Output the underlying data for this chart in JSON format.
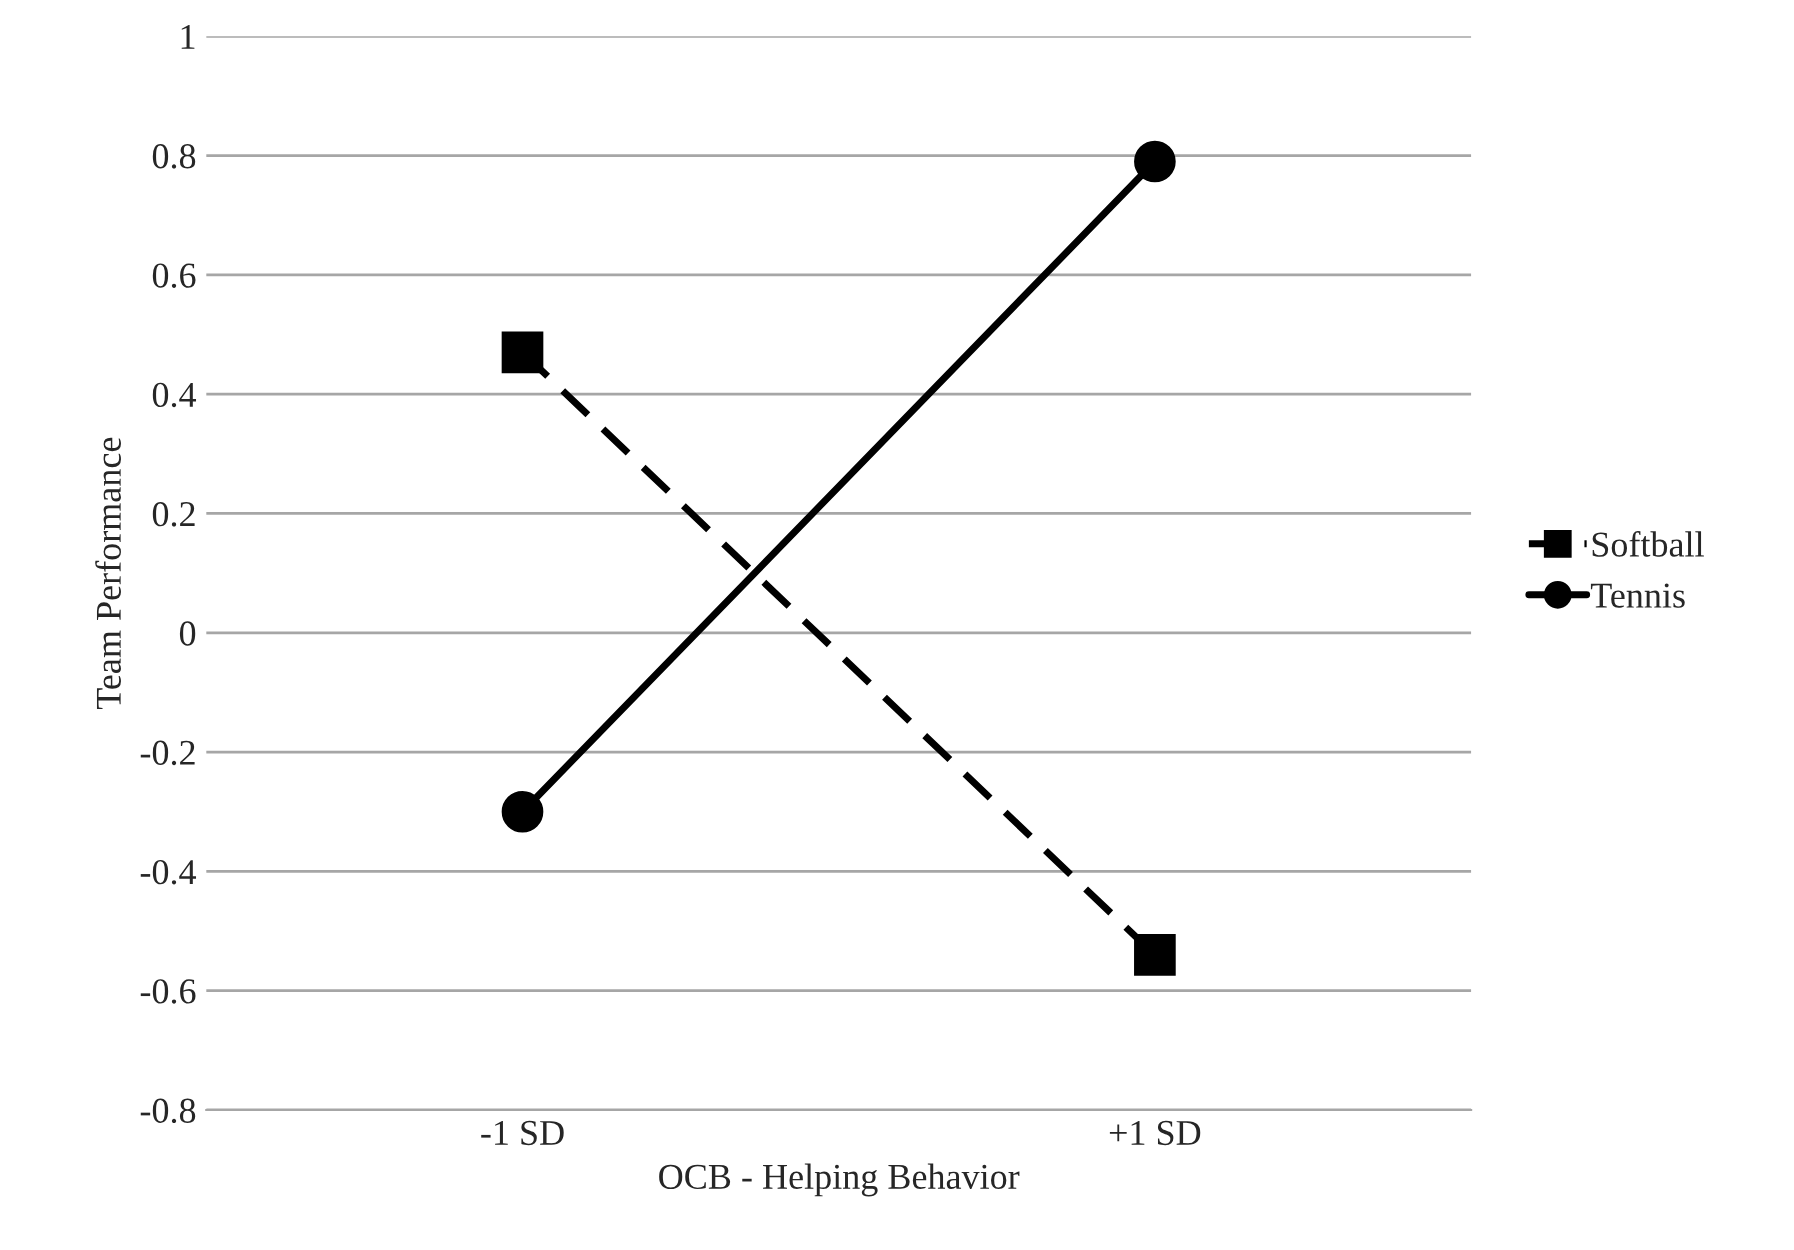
{
  "chart_data": {
    "type": "line",
    "xlabel": "OCB - Helping Behavior",
    "ylabel": "Team Performance",
    "categories": [
      "-1 SD",
      "+1 SD"
    ],
    "series": [
      {
        "name": "Softball",
        "color": "#000000",
        "values": [
          0.47,
          -0.54
        ],
        "marker": "square",
        "line_style": "dashed"
      },
      {
        "name": "Tennis",
        "color": "#000000",
        "values": [
          -0.3,
          0.79
        ],
        "marker": "circle",
        "line_style": "solid"
      }
    ],
    "ylim": [
      -0.8,
      1
    ],
    "yticks": [
      -0.8,
      -0.6,
      -0.4,
      -0.2,
      0,
      0.2,
      0.4,
      0.6,
      0.8,
      1
    ],
    "grid": "y",
    "legend": "right"
  }
}
